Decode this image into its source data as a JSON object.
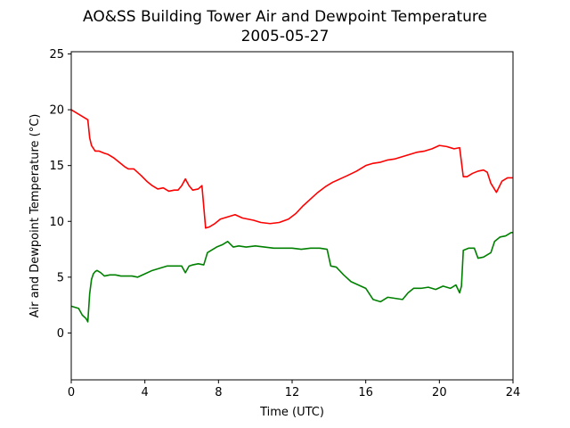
{
  "chart_data": {
    "type": "line",
    "title": "AO&SS Building Tower Air and Dewpoint Temperature",
    "subtitle": "2005-05-27",
    "xlabel": "Time (UTC)",
    "ylabel": "Air and Dewpoint Temperature (°C)",
    "xlim": [
      0,
      24
    ],
    "ylim": [
      -4.2,
      25.2
    ],
    "xticks": [
      0,
      4,
      8,
      12,
      16,
      20,
      24
    ],
    "yticks": [
      0,
      5,
      10,
      15,
      20,
      25
    ],
    "grid": false,
    "legend": "none",
    "series": [
      {
        "color": "#ff0000",
        "x": [
          0.0,
          0.3,
          0.6,
          0.9,
          1.0,
          1.1,
          1.3,
          1.5,
          1.8,
          2.0,
          2.3,
          2.6,
          2.9,
          3.1,
          3.4,
          3.8,
          4.1,
          4.4,
          4.7,
          5.0,
          5.3,
          5.6,
          5.8,
          6.0,
          6.2,
          6.4,
          6.6,
          6.9,
          7.1,
          7.3,
          7.5,
          7.8,
          8.1,
          8.5,
          8.9,
          9.3,
          9.6,
          9.9,
          10.3,
          10.8,
          11.3,
          11.8,
          12.2,
          12.6,
          13.0,
          13.4,
          13.8,
          14.2,
          14.6,
          15.0,
          15.5,
          16.0,
          16.4,
          16.8,
          17.2,
          17.6,
          18.0,
          18.4,
          18.8,
          19.2,
          19.6,
          20.0,
          20.4,
          20.8,
          21.1,
          21.3,
          21.5,
          21.8,
          22.1,
          22.4,
          22.6,
          22.8,
          23.1,
          23.4,
          23.7,
          24.0
        ],
        "y": [
          20.0,
          19.7,
          19.4,
          19.1,
          17.5,
          16.8,
          16.3,
          16.3,
          16.1,
          16.0,
          15.7,
          15.3,
          14.9,
          14.7,
          14.7,
          14.1,
          13.6,
          13.2,
          12.9,
          13.0,
          12.7,
          12.8,
          12.8,
          13.2,
          13.8,
          13.2,
          12.8,
          12.9,
          13.2,
          9.4,
          9.5,
          9.8,
          10.2,
          10.4,
          10.6,
          10.3,
          10.2,
          10.1,
          9.9,
          9.8,
          9.9,
          10.2,
          10.7,
          11.4,
          12.0,
          12.6,
          13.1,
          13.5,
          13.8,
          14.1,
          14.5,
          15.0,
          15.2,
          15.3,
          15.5,
          15.6,
          15.8,
          16.0,
          16.2,
          16.3,
          16.5,
          16.8,
          16.7,
          16.5,
          16.6,
          14.0,
          14.0,
          14.3,
          14.5,
          14.6,
          14.4,
          13.4,
          12.6,
          13.6,
          13.9,
          13.9
        ]
      },
      {
        "color": "#008000",
        "x": [
          0.0,
          0.2,
          0.4,
          0.6,
          0.8,
          0.9,
          1.0,
          1.1,
          1.2,
          1.3,
          1.4,
          1.6,
          1.8,
          2.1,
          2.4,
          2.7,
          3.0,
          3.3,
          3.6,
          4.0,
          4.4,
          4.8,
          5.2,
          5.6,
          6.0,
          6.2,
          6.4,
          6.6,
          6.9,
          7.2,
          7.4,
          7.6,
          7.9,
          8.2,
          8.5,
          8.8,
          9.1,
          9.5,
          10.0,
          10.5,
          11.0,
          11.5,
          12.0,
          12.5,
          13.0,
          13.5,
          13.9,
          14.1,
          14.4,
          14.8,
          15.2,
          15.6,
          16.0,
          16.4,
          16.8,
          17.2,
          17.6,
          18.0,
          18.3,
          18.6,
          19.0,
          19.4,
          19.8,
          20.2,
          20.6,
          20.9,
          21.1,
          21.2,
          21.3,
          21.6,
          21.9,
          22.1,
          22.4,
          22.8,
          23.0,
          23.3,
          23.6,
          23.9,
          24.0
        ],
        "y": [
          2.4,
          2.3,
          2.2,
          1.6,
          1.3,
          1.0,
          3.5,
          4.8,
          5.3,
          5.5,
          5.6,
          5.4,
          5.1,
          5.2,
          5.2,
          5.1,
          5.1,
          5.1,
          5.0,
          5.3,
          5.6,
          5.8,
          6.0,
          6.0,
          6.0,
          5.4,
          6.0,
          6.1,
          6.2,
          6.1,
          7.2,
          7.4,
          7.7,
          7.9,
          8.2,
          7.7,
          7.8,
          7.7,
          7.8,
          7.7,
          7.6,
          7.6,
          7.6,
          7.5,
          7.6,
          7.6,
          7.5,
          6.0,
          5.9,
          5.2,
          4.6,
          4.3,
          4.0,
          3.0,
          2.8,
          3.2,
          3.1,
          3.0,
          3.6,
          4.0,
          4.0,
          4.1,
          3.9,
          4.2,
          4.0,
          4.3,
          3.6,
          4.2,
          7.4,
          7.6,
          7.6,
          6.7,
          6.8,
          7.2,
          8.2,
          8.6,
          8.7,
          9.0,
          9.0
        ]
      }
    ]
  }
}
